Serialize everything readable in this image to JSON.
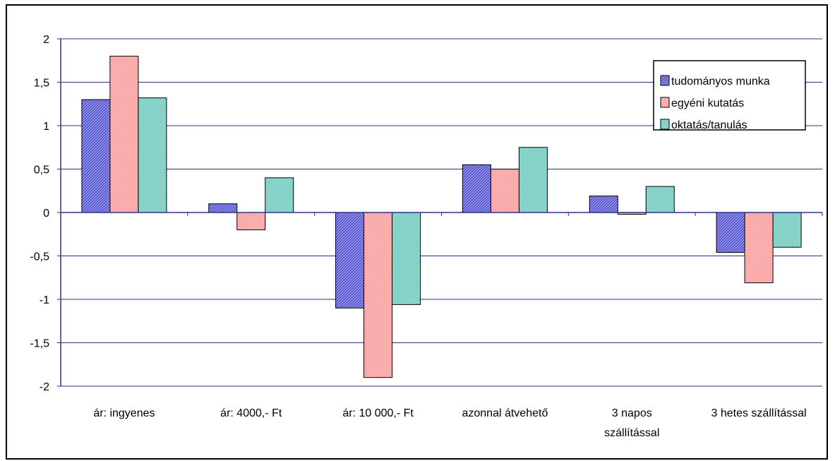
{
  "chart_data": {
    "type": "bar",
    "title": "",
    "xlabel": "",
    "ylabel": "",
    "ylim": [
      -2,
      2
    ],
    "yticks": [
      2,
      1.5,
      1,
      0.5,
      0,
      -0.5,
      -1,
      -1.5,
      -2
    ],
    "ytick_labels": [
      "2",
      "1,5",
      "1",
      "0,5",
      "0",
      "-0,5",
      "-1",
      "-1,5",
      "-2"
    ],
    "grid": true,
    "legend_position": "top-right",
    "categories": [
      [
        "ár: ingyenes"
      ],
      [
        "ár: 4000,- Ft"
      ],
      [
        "ár: 10 000,- Ft"
      ],
      [
        "azonnal átvehető"
      ],
      [
        "3 napos",
        "szállítással"
      ],
      [
        "3 hetes szállítással"
      ]
    ],
    "series": [
      {
        "name": "tudományos munka",
        "values": [
          1.3,
          0.1,
          -1.1,
          0.55,
          0.19,
          -0.46
        ],
        "color": "#9999ff",
        "hatch": "#333399"
      },
      {
        "name": "egyéni kutatás",
        "values": [
          1.8,
          -0.2,
          -1.9,
          0.5,
          -0.02,
          -0.81
        ],
        "color": "#ff9999",
        "hatch": "#ffd0d0"
      },
      {
        "name": "oktatás/tanulás",
        "values": [
          1.32,
          0.4,
          -1.06,
          0.75,
          0.3,
          -0.4
        ],
        "color": "#99e0d8",
        "hatch": "#66bbb0"
      }
    ]
  }
}
